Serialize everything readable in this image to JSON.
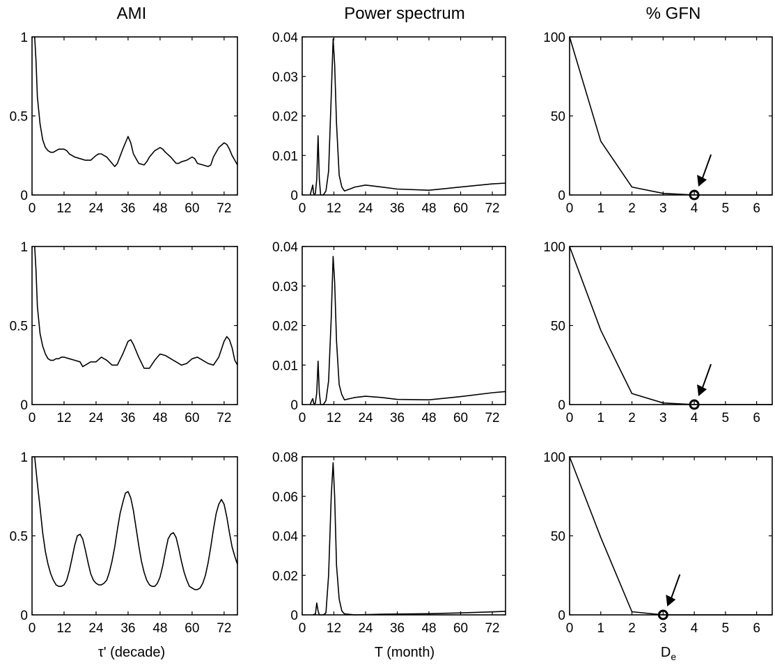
{
  "figure": {
    "column_titles": [
      "AMI",
      "Power spectrum",
      "% GFN"
    ],
    "xlabels": {
      "ami": "τ' (decade)",
      "power": "T (month)",
      "gfn_main": "D",
      "gfn_sub": "e"
    }
  },
  "chart_data": [
    {
      "type": "line",
      "row": 0,
      "col": 0,
      "title": "AMI",
      "xlabel": "",
      "ylabel": "",
      "xlim": [
        0,
        77
      ],
      "ylim": [
        0,
        1
      ],
      "xticks": [
        0,
        12,
        24,
        36,
        48,
        60,
        72
      ],
      "yticks": [
        0,
        0.5,
        1
      ],
      "ytick_labels": [
        "0",
        "0.5",
        "1"
      ],
      "x": [
        1,
        1.5,
        2,
        3,
        4,
        5,
        6,
        7,
        8,
        9,
        10,
        11,
        12,
        13,
        14,
        15,
        16,
        18,
        20,
        22,
        24,
        25,
        26,
        27,
        28,
        30,
        31,
        32,
        34,
        36,
        37,
        38,
        40,
        42,
        43,
        44,
        46,
        48,
        49,
        50,
        52,
        54,
        55,
        56,
        58,
        60,
        61,
        62,
        64,
        66,
        67,
        68,
        70,
        72,
        73,
        74,
        75,
        76,
        77
      ],
      "y": [
        1.0,
        0.85,
        0.62,
        0.45,
        0.35,
        0.3,
        0.28,
        0.27,
        0.27,
        0.28,
        0.29,
        0.29,
        0.29,
        0.28,
        0.26,
        0.25,
        0.24,
        0.23,
        0.22,
        0.22,
        0.25,
        0.26,
        0.26,
        0.25,
        0.24,
        0.2,
        0.18,
        0.2,
        0.29,
        0.37,
        0.33,
        0.26,
        0.2,
        0.19,
        0.21,
        0.24,
        0.28,
        0.3,
        0.29,
        0.27,
        0.24,
        0.2,
        0.2,
        0.21,
        0.22,
        0.24,
        0.23,
        0.2,
        0.19,
        0.18,
        0.19,
        0.24,
        0.3,
        0.33,
        0.32,
        0.29,
        0.25,
        0.22,
        0.19
      ]
    },
    {
      "type": "line",
      "row": 0,
      "col": 1,
      "title": "Power spectrum",
      "xlabel": "",
      "ylabel": "",
      "xlim": [
        0,
        77
      ],
      "ylim": [
        0,
        0.04
      ],
      "xticks": [
        0,
        12,
        24,
        36,
        48,
        60,
        72
      ],
      "yticks": [
        0,
        0.01,
        0.02,
        0.03,
        0.04
      ],
      "ytick_labels": [
        "0",
        "0.01",
        "0.02",
        "0.03",
        "0.04"
      ],
      "x": [
        3,
        3.6,
        4,
        4.3,
        4.7,
        5,
        5.5,
        6,
        6.5,
        7,
        7.5,
        8,
        9,
        10,
        11,
        11.7,
        12.3,
        13,
        14,
        15,
        16,
        18,
        20,
        24,
        30,
        36,
        48,
        60,
        72,
        77
      ],
      "y": [
        0.0,
        0.0015,
        0.0025,
        0.0005,
        0.0,
        0.0005,
        0.004,
        0.015,
        0.004,
        0.0,
        0.0,
        0.0,
        0.001,
        0.006,
        0.025,
        0.0395,
        0.033,
        0.018,
        0.005,
        0.002,
        0.001,
        0.0015,
        0.002,
        0.0025,
        0.002,
        0.0015,
        0.0012,
        0.002,
        0.0028,
        0.003
      ]
    },
    {
      "type": "line",
      "row": 0,
      "col": 2,
      "title": "% GFN",
      "xlabel": "",
      "ylabel": "",
      "xlim": [
        0,
        6.5
      ],
      "ylim": [
        0,
        100
      ],
      "xticks": [
        0,
        1,
        2,
        3,
        4,
        5,
        6
      ],
      "yticks": [
        0,
        50,
        100
      ],
      "ytick_labels": [
        "0",
        "50",
        "100"
      ],
      "x": [
        0,
        1,
        2,
        3,
        4,
        5,
        6,
        6.5
      ],
      "y": [
        100,
        34,
        5,
        1,
        0,
        0,
        0,
        0
      ],
      "highlight": {
        "x": 4,
        "y": 0
      }
    },
    {
      "type": "line",
      "row": 1,
      "col": 0,
      "title": "",
      "xlabel": "",
      "ylabel": "",
      "xlim": [
        0,
        77
      ],
      "ylim": [
        0,
        1
      ],
      "xticks": [
        0,
        12,
        24,
        36,
        48,
        60,
        72
      ],
      "yticks": [
        0,
        0.5,
        1
      ],
      "ytick_labels": [
        "0",
        "0.5",
        "1"
      ],
      "x": [
        1,
        1.5,
        2,
        3,
        4,
        5,
        6,
        7,
        8,
        9,
        10,
        11,
        12,
        14,
        16,
        18,
        19,
        20,
        22,
        24,
        26,
        28,
        30,
        32,
        34,
        36,
        37,
        38,
        40,
        42,
        44,
        46,
        48,
        50,
        52,
        54,
        56,
        58,
        60,
        62,
        64,
        66,
        68,
        70,
        72,
        73,
        74,
        75,
        76,
        77
      ],
      "y": [
        1.0,
        0.85,
        0.62,
        0.45,
        0.37,
        0.32,
        0.29,
        0.28,
        0.28,
        0.29,
        0.29,
        0.3,
        0.3,
        0.29,
        0.28,
        0.27,
        0.24,
        0.25,
        0.27,
        0.27,
        0.3,
        0.28,
        0.25,
        0.25,
        0.32,
        0.4,
        0.41,
        0.38,
        0.3,
        0.23,
        0.23,
        0.28,
        0.32,
        0.31,
        0.29,
        0.27,
        0.25,
        0.26,
        0.29,
        0.3,
        0.28,
        0.26,
        0.25,
        0.3,
        0.4,
        0.43,
        0.41,
        0.36,
        0.28,
        0.25
      ]
    },
    {
      "type": "line",
      "row": 1,
      "col": 1,
      "title": "",
      "xlabel": "",
      "ylabel": "",
      "xlim": [
        0,
        77
      ],
      "ylim": [
        0,
        0.04
      ],
      "xticks": [
        0,
        12,
        24,
        36,
        48,
        60,
        72
      ],
      "yticks": [
        0,
        0.01,
        0.02,
        0.03,
        0.04
      ],
      "ytick_labels": [
        "0",
        "0.01",
        "0.02",
        "0.03",
        "0.04"
      ],
      "x": [
        3,
        3.6,
        4,
        4.3,
        4.7,
        5,
        5.5,
        6,
        6.5,
        7,
        7.5,
        8,
        9,
        10,
        11,
        11.7,
        12.3,
        13,
        14,
        15,
        16,
        18,
        20,
        24,
        30,
        36,
        48,
        60,
        72,
        77
      ],
      "y": [
        0.0,
        0.001,
        0.0015,
        0.0005,
        0.0,
        0.0005,
        0.003,
        0.011,
        0.003,
        0.0,
        0.0,
        0.0,
        0.001,
        0.006,
        0.022,
        0.0375,
        0.031,
        0.016,
        0.005,
        0.0025,
        0.0012,
        0.0015,
        0.0018,
        0.0021,
        0.0018,
        0.0013,
        0.0012,
        0.002,
        0.003,
        0.0033
      ]
    },
    {
      "type": "line",
      "row": 1,
      "col": 2,
      "title": "",
      "xlabel": "",
      "ylabel": "",
      "xlim": [
        0,
        6.5
      ],
      "ylim": [
        0,
        100
      ],
      "xticks": [
        0,
        1,
        2,
        3,
        4,
        5,
        6
      ],
      "yticks": [
        0,
        50,
        100
      ],
      "ytick_labels": [
        "0",
        "50",
        "100"
      ],
      "x": [
        0,
        1,
        2,
        3,
        4,
        5,
        6,
        6.5
      ],
      "y": [
        100,
        47,
        7,
        1,
        0,
        0,
        0,
        0
      ],
      "highlight": {
        "x": 4,
        "y": 0
      }
    },
    {
      "type": "line",
      "row": 2,
      "col": 0,
      "title": "",
      "xlabel": "τ' (decade)",
      "ylabel": "",
      "xlim": [
        0,
        77
      ],
      "ylim": [
        0,
        1
      ],
      "xticks": [
        0,
        12,
        24,
        36,
        48,
        60,
        72
      ],
      "yticks": [
        0,
        0.5,
        1
      ],
      "ytick_labels": [
        "0",
        "0.5",
        "1"
      ],
      "x": [
        1,
        2,
        3,
        4,
        5,
        6,
        7,
        8,
        9,
        10,
        11,
        12,
        13,
        14,
        15,
        16,
        17,
        18,
        19,
        20,
        21,
        22,
        23,
        24,
        25,
        26,
        27,
        28,
        29,
        30,
        31,
        32,
        33,
        34,
        35,
        36,
        37,
        38,
        39,
        40,
        41,
        42,
        43,
        44,
        45,
        46,
        47,
        48,
        49,
        50,
        51,
        52,
        53,
        54,
        55,
        56,
        57,
        58,
        59,
        60,
        61,
        62,
        63,
        64,
        65,
        66,
        67,
        68,
        69,
        70,
        71,
        72,
        73,
        74,
        75,
        76,
        77
      ],
      "y": [
        1.0,
        0.83,
        0.68,
        0.52,
        0.4,
        0.32,
        0.26,
        0.22,
        0.19,
        0.18,
        0.18,
        0.19,
        0.22,
        0.28,
        0.36,
        0.44,
        0.5,
        0.51,
        0.48,
        0.41,
        0.33,
        0.26,
        0.22,
        0.2,
        0.19,
        0.19,
        0.2,
        0.22,
        0.27,
        0.34,
        0.43,
        0.54,
        0.64,
        0.71,
        0.77,
        0.78,
        0.74,
        0.66,
        0.55,
        0.44,
        0.34,
        0.27,
        0.22,
        0.19,
        0.18,
        0.18,
        0.2,
        0.24,
        0.31,
        0.4,
        0.48,
        0.51,
        0.52,
        0.49,
        0.42,
        0.34,
        0.27,
        0.22,
        0.18,
        0.17,
        0.16,
        0.16,
        0.17,
        0.2,
        0.25,
        0.33,
        0.43,
        0.54,
        0.64,
        0.7,
        0.73,
        0.7,
        0.62,
        0.52,
        0.43,
        0.37,
        0.32
      ]
    },
    {
      "type": "line",
      "row": 2,
      "col": 1,
      "title": "",
      "xlabel": "T (month)",
      "ylabel": "",
      "xlim": [
        0,
        77
      ],
      "ylim": [
        0,
        0.08
      ],
      "xticks": [
        0,
        12,
        24,
        36,
        48,
        60,
        72
      ],
      "yticks": [
        0,
        0.02,
        0.04,
        0.06,
        0.08
      ],
      "ytick_labels": [
        "0",
        "0.02",
        "0.04",
        "0.06",
        "0.08"
      ],
      "x": [
        4,
        5,
        5.5,
        6,
        6.5,
        7,
        8,
        9,
        10,
        11,
        11.7,
        12.3,
        13,
        14,
        15,
        16,
        20,
        30,
        48,
        60,
        72,
        77
      ],
      "y": [
        0.0,
        0.0005,
        0.006,
        0.002,
        0.0,
        0.0,
        0.0,
        0.001,
        0.02,
        0.06,
        0.077,
        0.06,
        0.025,
        0.008,
        0.002,
        0.0005,
        0.0,
        0.0003,
        0.0006,
        0.001,
        0.0015,
        0.0018
      ]
    },
    {
      "type": "line",
      "row": 2,
      "col": 2,
      "title": "",
      "xlabel": "De",
      "ylabel": "",
      "xlim": [
        0,
        6.5
      ],
      "ylim": [
        0,
        100
      ],
      "xticks": [
        0,
        1,
        2,
        3,
        4,
        5,
        6
      ],
      "yticks": [
        0,
        50,
        100
      ],
      "ytick_labels": [
        "0",
        "50",
        "100"
      ],
      "x": [
        0,
        1,
        2,
        3,
        4,
        5,
        6,
        6.5
      ],
      "y": [
        100,
        49,
        2,
        0,
        0,
        0,
        0,
        0
      ],
      "highlight": {
        "x": 3,
        "y": 0
      }
    }
  ]
}
